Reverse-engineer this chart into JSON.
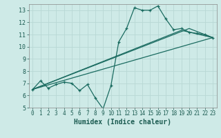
{
  "xlabel": "Humidex (Indice chaleur)",
  "bg_color": "#ceeae7",
  "grid_color": "#b8d8d4",
  "line_color": "#1a6b60",
  "xlim": [
    -0.5,
    23.5
  ],
  "ylim": [
    5,
    13.5
  ],
  "xticks": [
    0,
    1,
    2,
    3,
    4,
    5,
    6,
    7,
    8,
    9,
    10,
    11,
    12,
    13,
    14,
    15,
    16,
    17,
    18,
    19,
    20,
    21,
    22,
    23
  ],
  "yticks": [
    5,
    6,
    7,
    8,
    9,
    10,
    11,
    12,
    13
  ],
  "series1_x": [
    0,
    1,
    2,
    3,
    4,
    5,
    6,
    7,
    8,
    9,
    10,
    11,
    12,
    13,
    14,
    15,
    16,
    17,
    18,
    19,
    20,
    21,
    22,
    23
  ],
  "series1_y": [
    6.5,
    7.2,
    6.6,
    6.9,
    7.1,
    7.0,
    6.4,
    6.9,
    5.8,
    4.9,
    6.8,
    10.4,
    11.5,
    13.2,
    13.0,
    13.0,
    13.35,
    12.3,
    11.4,
    11.5,
    11.2,
    11.1,
    11.0,
    10.75
  ],
  "series2_x": [
    0,
    23
  ],
  "series2_y": [
    6.5,
    10.75
  ],
  "series3_x": [
    0,
    19,
    23
  ],
  "series3_y": [
    6.5,
    11.35,
    10.75
  ],
  "series4_x": [
    0,
    20,
    23
  ],
  "series4_y": [
    6.5,
    11.5,
    10.75
  ]
}
